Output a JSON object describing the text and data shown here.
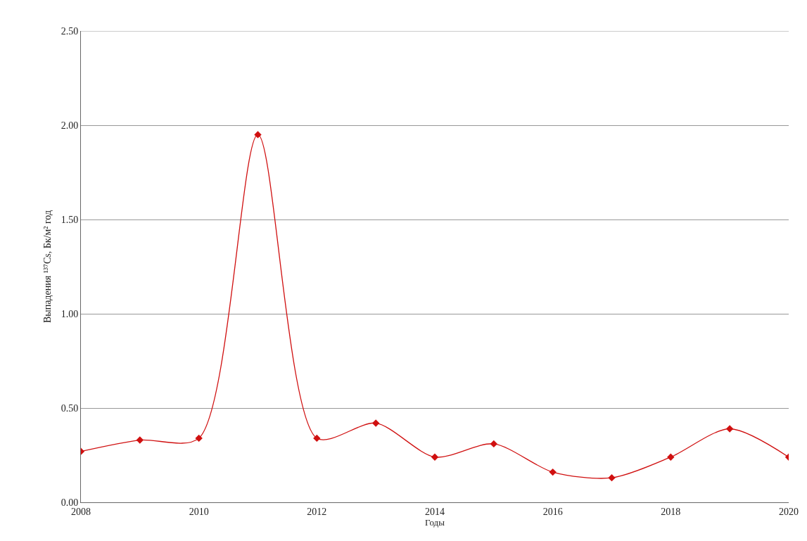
{
  "chart_data": {
    "type": "line",
    "xlabel": "Годы",
    "ylabel": "Выпадения ¹³⁷Cs, Бк/м² год",
    "x": [
      2008,
      2009,
      2010,
      2011,
      2012,
      2013,
      2014,
      2015,
      2016,
      2017,
      2018,
      2019,
      2020
    ],
    "series": [
      {
        "color": "#d01010",
        "values": [
          0.27,
          0.33,
          0.34,
          1.95,
          0.34,
          0.42,
          0.24,
          0.31,
          0.16,
          0.13,
          0.24,
          0.39,
          0.24
        ]
      }
    ],
    "xlim": [
      2008,
      2020
    ],
    "xticks": [
      2008,
      2010,
      2012,
      2014,
      2016,
      2018,
      2020
    ],
    "ylim": [
      0,
      2.5
    ],
    "yticks": [
      {
        "value": 0,
        "label": "0.00"
      },
      {
        "value": 0.5,
        "label": "0.50"
      },
      {
        "value": 1,
        "label": "1.00"
      },
      {
        "value": 1.5,
        "label": "1.50"
      },
      {
        "value": 2,
        "label": "2.00"
      },
      {
        "value": 2.5,
        "label": "2.50"
      }
    ],
    "grid": "y",
    "marker": "diamond",
    "line_style": "solid"
  }
}
